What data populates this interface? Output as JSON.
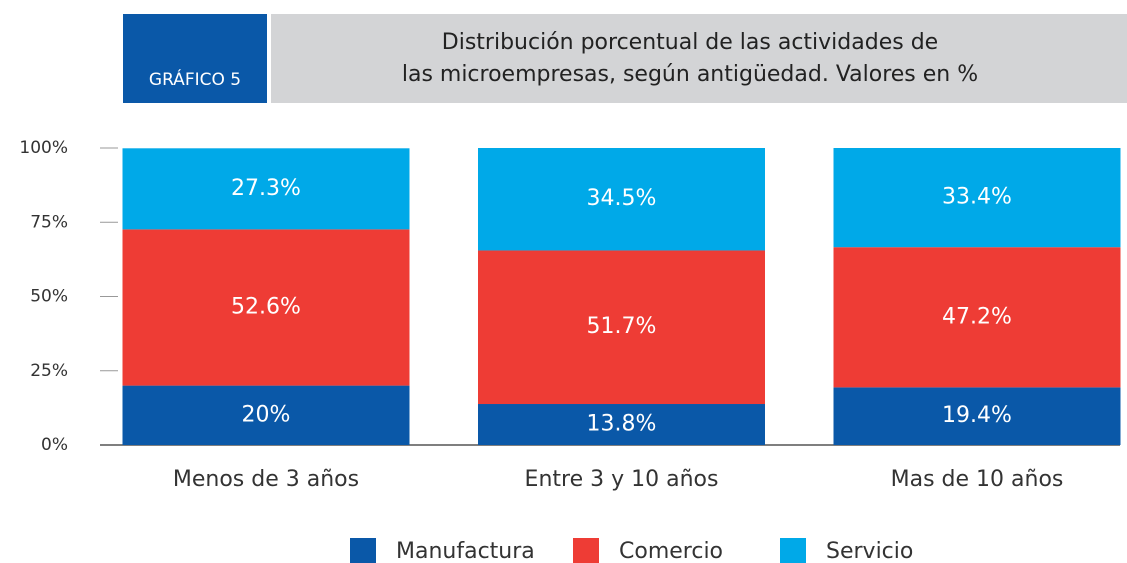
{
  "chart_data": {
    "type": "stacked_bar",
    "badge": "GRÁFICO 5",
    "title_lines": [
      "Distribución porcentual de las actividades de",
      "las microempresas, según antigüedad. Valores en %"
    ],
    "categories": [
      "Menos de 3 años",
      "Entre 3 y 10 años",
      "Mas de 10 años"
    ],
    "series": [
      {
        "name": "Manufactura",
        "color": "#0a58a8",
        "values": [
          20,
          13.8,
          19.4
        ],
        "value_labels": [
          "20%",
          "13.8%",
          "19.4%"
        ]
      },
      {
        "name": "Comercio",
        "color": "#ee3c35",
        "values": [
          52.6,
          51.7,
          47.2
        ],
        "value_labels": [
          "52.6%",
          "51.7%",
          "47.2%"
        ]
      },
      {
        "name": "Servicio",
        "color": "#00a9e8",
        "values": [
          27.3,
          34.5,
          33.4
        ],
        "value_labels": [
          "27.3%",
          "34.5%",
          "33.4%"
        ]
      }
    ],
    "ylim": [
      0,
      100
    ],
    "yticks": [
      {
        "value": 0,
        "label": "0%"
      },
      {
        "value": 25,
        "label": "25%"
      },
      {
        "value": 50,
        "label": "50%"
      },
      {
        "value": 75,
        "label": "75%"
      },
      {
        "value": 100,
        "label": "100%"
      }
    ],
    "legend": "bottom"
  }
}
